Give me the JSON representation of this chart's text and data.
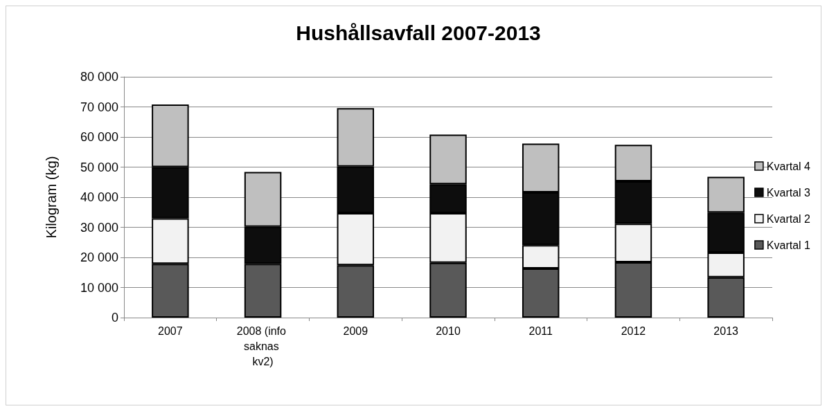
{
  "chart_data": {
    "type": "bar",
    "title": "Hushållsavfall 2007-2013",
    "ylabel": "Kilogram (kg)",
    "categories": [
      "2007",
      "2008 (info saknas kv2)",
      "2009",
      "2010",
      "2011",
      "2012",
      "2013"
    ],
    "stacked": true,
    "series": [
      {
        "name": "Kvartal 1",
        "color": "#595959",
        "values": [
          17900,
          17900,
          17400,
          18200,
          16300,
          18400,
          13400
        ]
      },
      {
        "name": "Kvartal 2",
        "color": "#f2f2f2",
        "values": [
          15100,
          null,
          17300,
          16500,
          7800,
          12800,
          8200
        ]
      },
      {
        "name": "Kvartal 3",
        "color": "#0d0d0d",
        "values": [
          17000,
          12300,
          15500,
          9600,
          17500,
          14100,
          13300
        ]
      },
      {
        "name": "Kvartal 4",
        "color": "#bfbfbf",
        "values": [
          20800,
          18200,
          19400,
          16500,
          16200,
          12100,
          11900
        ]
      }
    ],
    "ylim": [
      0,
      80000
    ],
    "yticks": [
      {
        "value": 0,
        "label": "0"
      },
      {
        "value": 10000,
        "label": "10 000"
      },
      {
        "value": 20000,
        "label": "20 000"
      },
      {
        "value": 30000,
        "label": "30 000"
      },
      {
        "value": 40000,
        "label": "40 000"
      },
      {
        "value": 50000,
        "label": "50 000"
      },
      {
        "value": 60000,
        "label": "60 000"
      },
      {
        "value": 70000,
        "label": "70 000"
      },
      {
        "value": 80000,
        "label": "80 000"
      }
    ],
    "grid": "y",
    "legend": "right"
  }
}
